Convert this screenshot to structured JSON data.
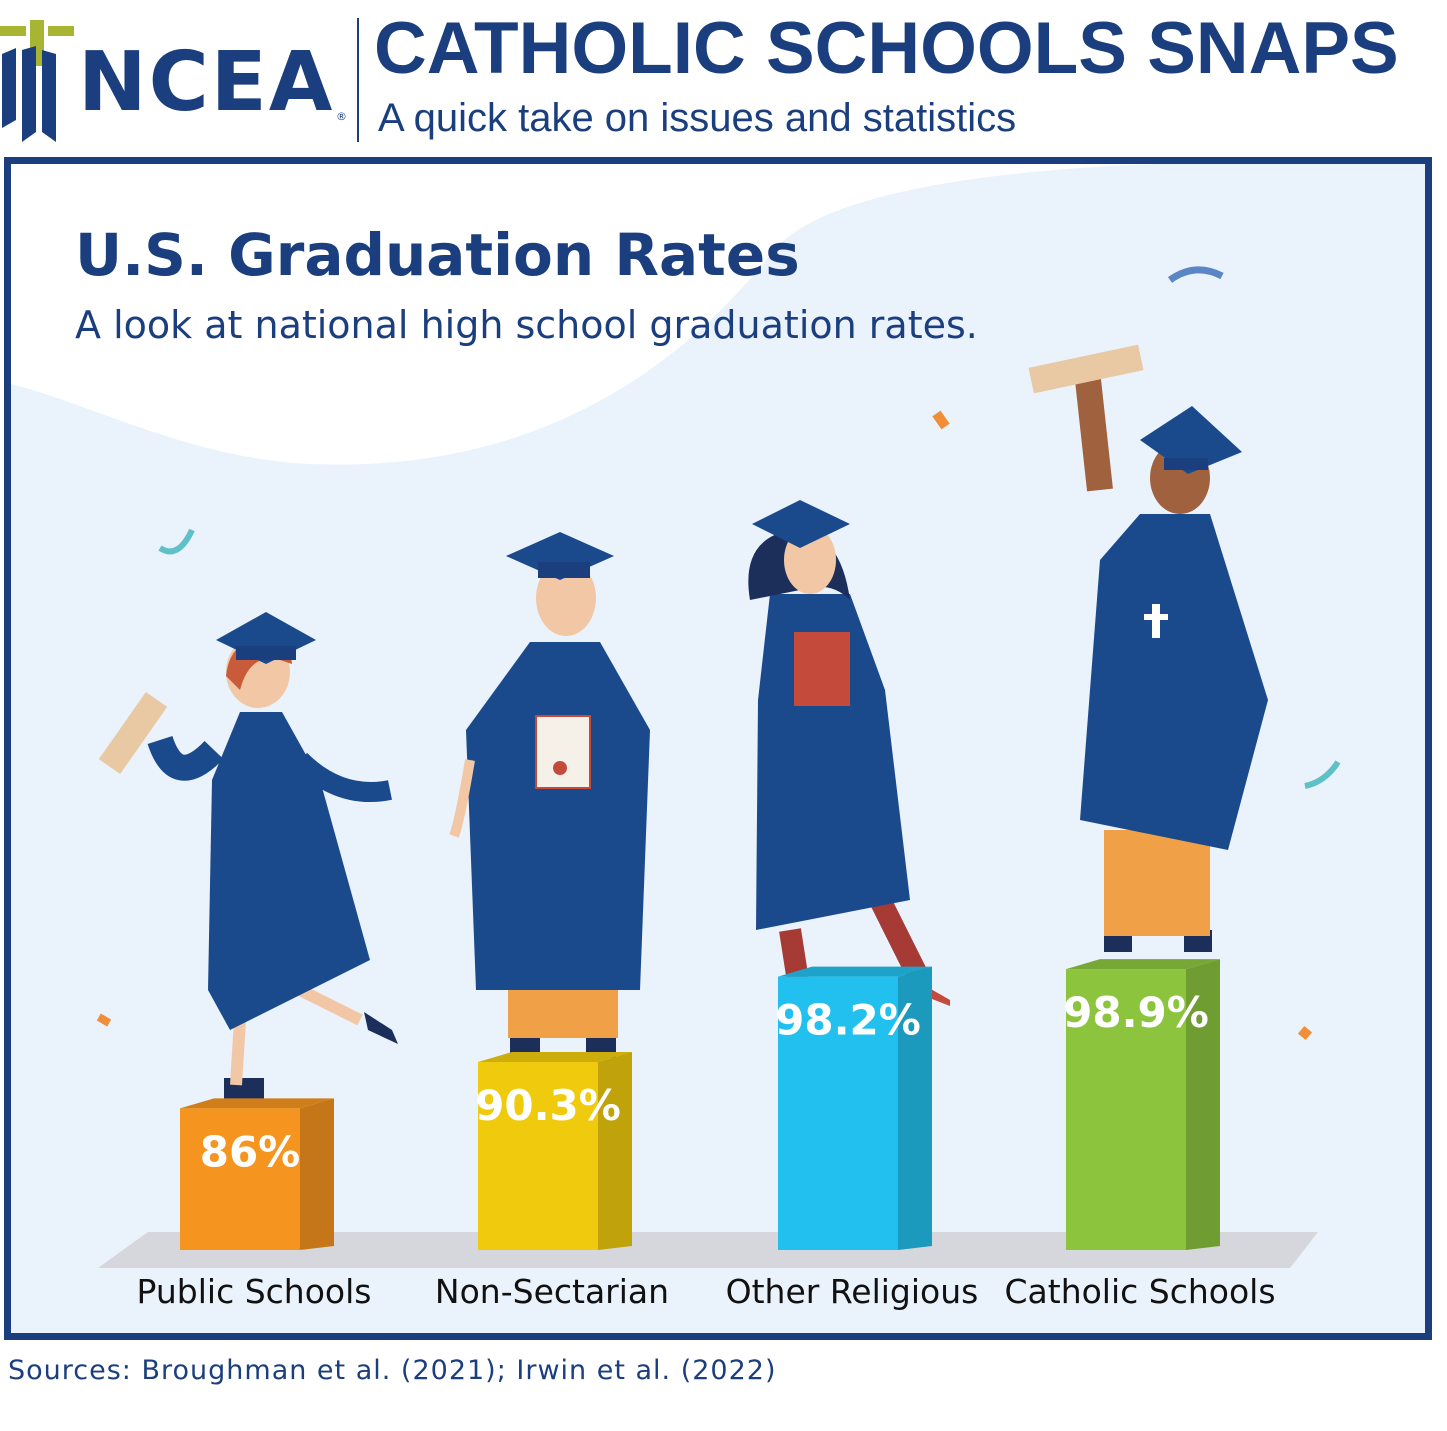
{
  "header": {
    "logo": "NCEA",
    "title": "CATHOLIC SCHOOLS SNAPS",
    "subtitle": "A quick take on issues and statistics"
  },
  "colors": {
    "brand": "#1b3f7e",
    "background": "#eaf2fc",
    "gown": "#1b4a8c"
  },
  "chart_data": {
    "type": "bar",
    "title": "U.S. Graduation Rates",
    "subtitle": "A look at national high school graduation rates.",
    "xlabel": "",
    "ylabel": "",
    "unit": "%",
    "categories": [
      "Public Schools",
      "Non-Sectarian",
      "Other Religious",
      "Catholic Schools"
    ],
    "values": [
      86,
      90.3,
      98.2,
      98.9
    ],
    "value_labels": [
      "86%",
      "90.3%",
      "98.2%",
      "98.9%"
    ],
    "colors": [
      "#f5941e",
      "#f0cb0d",
      "#22c0ee",
      "#8cc43e"
    ],
    "grid": false,
    "legend": "none"
  },
  "sources": "Sources: Broughman et al. (2021); Irwin et al. (2022)"
}
